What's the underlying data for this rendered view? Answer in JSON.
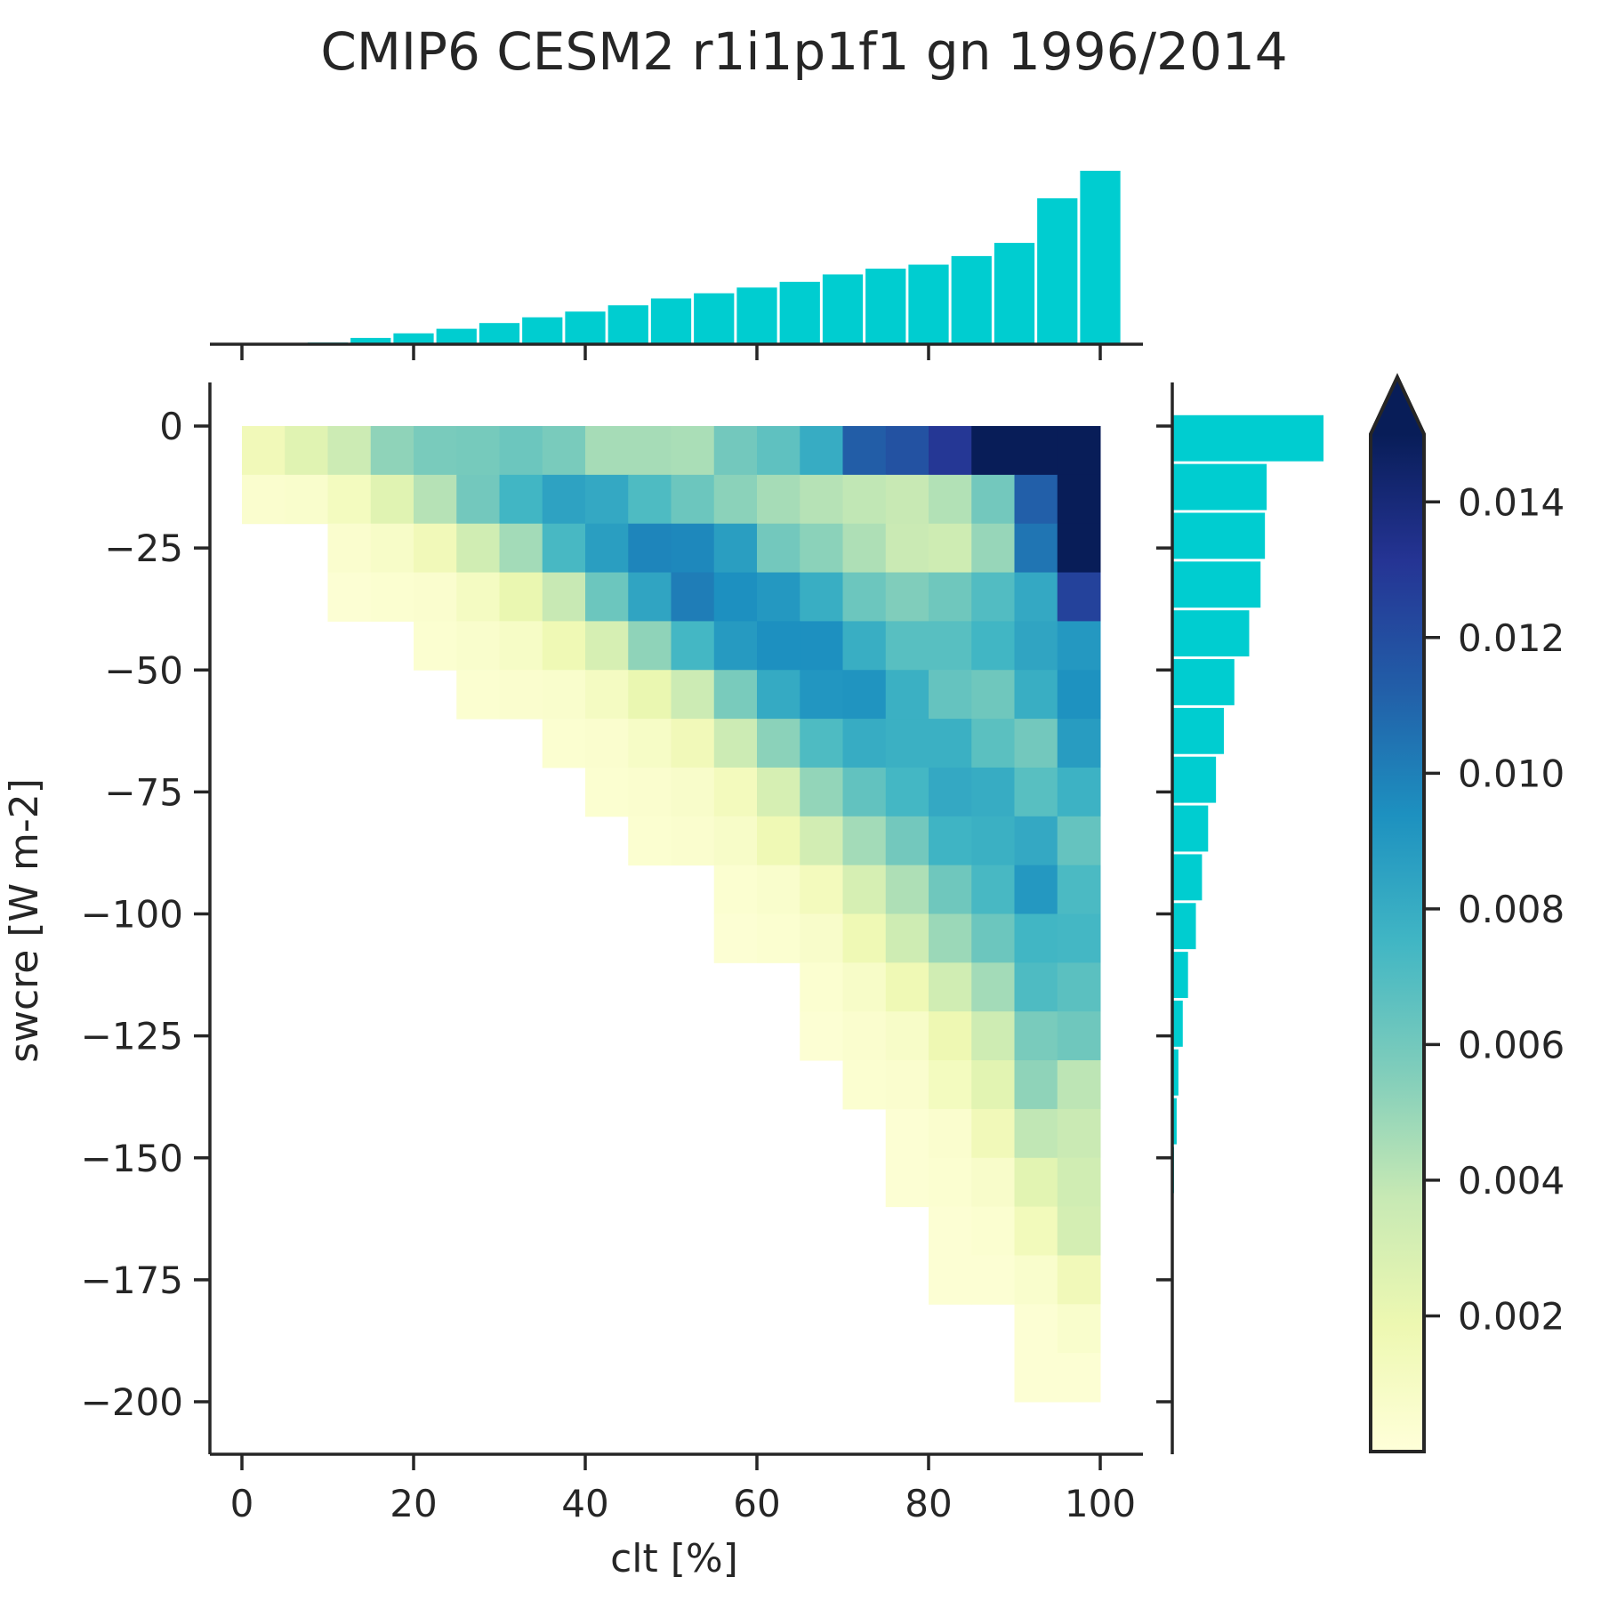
{
  "chart_data": {
    "type": "heatmap",
    "title": "CMIP6 CESM2 r1i1p1f1 gn 1996/2014",
    "xlabel": "clt [%]",
    "ylabel": "swcre [W m-2]",
    "xlim": [
      -4,
      105
    ],
    "ylim": [
      -210,
      9
    ],
    "x_ticks": [
      0,
      20,
      40,
      60,
      80,
      100
    ],
    "x_tick_labels": [
      "0",
      "20",
      "40",
      "60",
      "80",
      "100"
    ],
    "y_ticks": [
      0,
      -25,
      -50,
      -75,
      -100,
      -125,
      -150,
      -175,
      -200
    ],
    "y_tick_labels": [
      "0",
      "−25",
      "−50",
      "−75",
      "−100",
      "−125",
      "−150",
      "−175",
      "−200"
    ],
    "x_bin_edges": [
      0,
      5,
      10,
      15,
      20,
      25,
      30,
      35,
      40,
      45,
      50,
      55,
      60,
      65,
      70,
      75,
      80,
      85,
      90,
      95,
      100
    ],
    "y_bin_top": 0,
    "y_bin_width": 10,
    "rows": [
      [
        0.0015,
        0.0025,
        0.0035,
        0.0052,
        0.0058,
        0.0059,
        0.0062,
        0.0058,
        0.0046,
        0.0046,
        0.0045,
        0.006,
        0.0066,
        0.008,
        0.0113,
        0.0118,
        0.013,
        0.0155,
        0.016,
        0.0165
      ],
      [
        0.0005,
        0.0006,
        0.0012,
        0.0025,
        0.0042,
        0.006,
        0.0075,
        0.0085,
        0.0082,
        0.0071,
        0.0062,
        0.0053,
        0.0046,
        0.0042,
        0.0039,
        0.0037,
        0.0043,
        0.006,
        0.0112,
        0.016
      ],
      [
        null,
        null,
        0.0005,
        0.0008,
        0.0015,
        0.0033,
        0.0047,
        0.0073,
        0.0087,
        0.0098,
        0.0097,
        0.0087,
        0.006,
        0.0053,
        0.0044,
        0.0036,
        0.0034,
        0.005,
        0.0104,
        0.0158
      ],
      [
        null,
        null,
        0.0003,
        0.0004,
        0.0005,
        0.0011,
        0.002,
        0.0037,
        0.0062,
        0.0084,
        0.0101,
        0.0094,
        0.009,
        0.0079,
        0.0062,
        0.0056,
        0.0061,
        0.007,
        0.0082,
        0.0125
      ],
      [
        null,
        null,
        null,
        null,
        0.0004,
        0.0006,
        0.0009,
        0.0017,
        0.003,
        0.0052,
        0.0074,
        0.0089,
        0.0094,
        0.0094,
        0.0079,
        0.0068,
        0.0068,
        0.0075,
        0.0084,
        0.009
      ],
      [
        null,
        null,
        null,
        null,
        null,
        0.0004,
        0.0005,
        0.0006,
        0.0011,
        0.002,
        0.0035,
        0.0058,
        0.0081,
        0.0091,
        0.0092,
        0.0078,
        0.0064,
        0.0061,
        0.0079,
        0.0093
      ],
      [
        null,
        null,
        null,
        null,
        null,
        null,
        null,
        0.0004,
        0.0005,
        0.0009,
        0.0015,
        0.0035,
        0.0053,
        0.0071,
        0.008,
        0.0078,
        0.0078,
        0.0067,
        0.006,
        0.0088
      ],
      [
        null,
        null,
        null,
        null,
        null,
        null,
        null,
        null,
        0.0004,
        0.0005,
        0.0007,
        0.0013,
        0.003,
        0.0051,
        0.0065,
        0.0074,
        0.0082,
        0.008,
        0.0068,
        0.0077
      ],
      [
        null,
        null,
        null,
        null,
        null,
        null,
        null,
        null,
        null,
        0.0004,
        0.0005,
        0.0008,
        0.0017,
        0.0032,
        0.0047,
        0.006,
        0.0076,
        0.0078,
        0.0082,
        0.0064
      ],
      [
        null,
        null,
        null,
        null,
        null,
        null,
        null,
        null,
        null,
        null,
        null,
        0.0004,
        0.0006,
        0.0013,
        0.003,
        0.0044,
        0.0061,
        0.0073,
        0.009,
        0.0072
      ],
      [
        null,
        null,
        null,
        null,
        null,
        null,
        null,
        null,
        null,
        null,
        null,
        0.0003,
        0.0004,
        0.0007,
        0.0017,
        0.0034,
        0.0049,
        0.0062,
        0.0075,
        0.0074
      ],
      [
        null,
        null,
        null,
        null,
        null,
        null,
        null,
        null,
        null,
        null,
        null,
        null,
        null,
        0.0004,
        0.0008,
        0.0017,
        0.0033,
        0.0047,
        0.0071,
        0.0067
      ],
      [
        null,
        null,
        null,
        null,
        null,
        null,
        null,
        null,
        null,
        null,
        null,
        null,
        null,
        0.0003,
        0.0005,
        0.0008,
        0.0018,
        0.0034,
        0.0058,
        0.0061
      ],
      [
        null,
        null,
        null,
        null,
        null,
        null,
        null,
        null,
        null,
        null,
        null,
        null,
        null,
        null,
        0.0004,
        0.0005,
        0.0012,
        0.0024,
        0.0052,
        0.004
      ],
      [
        null,
        null,
        null,
        null,
        null,
        null,
        null,
        null,
        null,
        null,
        null,
        null,
        null,
        null,
        null,
        0.0003,
        0.0005,
        0.0015,
        0.0039,
        0.0036
      ],
      [
        null,
        null,
        null,
        null,
        null,
        null,
        null,
        null,
        null,
        null,
        null,
        null,
        null,
        null,
        null,
        0.0003,
        0.0004,
        0.0007,
        0.0024,
        0.0033
      ],
      [
        null,
        null,
        null,
        null,
        null,
        null,
        null,
        null,
        null,
        null,
        null,
        null,
        null,
        null,
        null,
        null,
        0.0003,
        0.0004,
        0.0014,
        0.0031
      ],
      [
        null,
        null,
        null,
        null,
        null,
        null,
        null,
        null,
        null,
        null,
        null,
        null,
        null,
        null,
        null,
        null,
        0.0003,
        0.0003,
        0.0006,
        0.0015
      ],
      [
        null,
        null,
        null,
        null,
        null,
        null,
        null,
        null,
        null,
        null,
        null,
        null,
        null,
        null,
        null,
        null,
        null,
        null,
        0.0003,
        0.0006
      ],
      [
        null,
        null,
        null,
        null,
        null,
        null,
        null,
        null,
        null,
        null,
        null,
        null,
        null,
        null,
        null,
        null,
        null,
        null,
        0.0003,
        0.0003
      ]
    ],
    "x_marginal": {
      "values": [
        0,
        0,
        0.003,
        0.011,
        0.019,
        0.027,
        0.037,
        0.047,
        0.057,
        0.068,
        0.08,
        0.089,
        0.099,
        0.109,
        0.122,
        0.132,
        0.139,
        0.154,
        0.177,
        0.255,
        0.303
      ],
      "color": "#00cdd0"
    },
    "y_marginal": {
      "values": [
        0.173,
        0.108,
        0.106,
        0.101,
        0.088,
        0.071,
        0.059,
        0.05,
        0.041,
        0.034,
        0.027,
        0.018,
        0.012,
        0.007,
        0.005,
        0.002,
        0,
        0,
        0,
        0
      ],
      "color": "#00cdd0"
    },
    "colorbar": {
      "min": 0,
      "max": 0.015,
      "extend": "max",
      "ticks": [
        0.002,
        0.004,
        0.006,
        0.008,
        0.01,
        0.012,
        0.014
      ],
      "tick_labels": [
        "0.002",
        "0.004",
        "0.006",
        "0.008",
        "0.010",
        "0.012",
        "0.014"
      ],
      "colormap": "YlGnBu",
      "colormap_stops": [
        "#ffffd9",
        "#edf8b1",
        "#c7e9b4",
        "#7fcdbb",
        "#41b6c4",
        "#1d91c0",
        "#225ea8",
        "#253494",
        "#081d58"
      ]
    },
    "grid": false
  }
}
